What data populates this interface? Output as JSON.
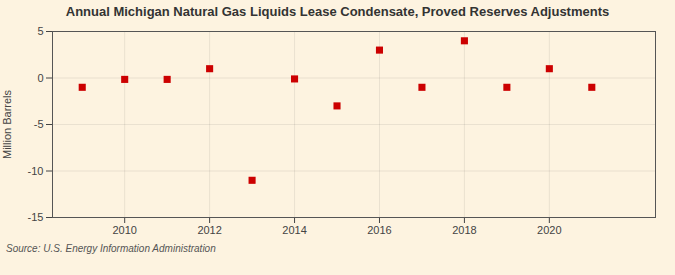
{
  "chart_data": {
    "type": "scatter",
    "title": "Annual Michigan Natural Gas Liquids Lease Condensate, Proved Reserves Adjustments",
    "ylabel": "Million Barrels",
    "annotations": [
      "Source: U.S. Energy Information Administration"
    ],
    "x": [
      2009,
      2010,
      2011,
      2012,
      2013,
      2014,
      2015,
      2016,
      2017,
      2018,
      2019,
      2020,
      2021
    ],
    "values": [
      -1.0,
      -0.15,
      -0.15,
      1.0,
      -11.0,
      -0.1,
      -3.0,
      3.0,
      -1.0,
      4.0,
      -1.0,
      1.0,
      -1.0
    ],
    "color": "#cc0000",
    "marker": "square",
    "xlim": [
      2008.3,
      2022.5
    ],
    "xticks": [
      2010,
      2012,
      2014,
      2016,
      2018,
      2020
    ],
    "ylim": [
      -15,
      5
    ],
    "yticks": [
      -15,
      -10,
      -5,
      0,
      5
    ],
    "grid": true
  }
}
